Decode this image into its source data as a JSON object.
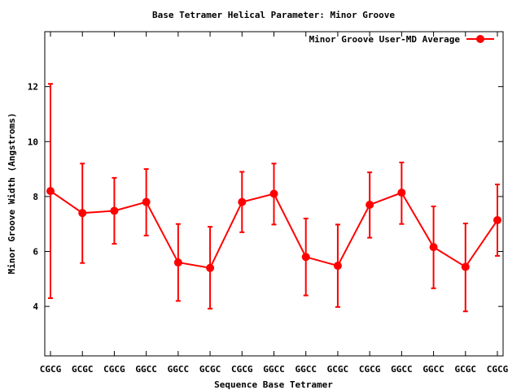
{
  "chart_data": {
    "type": "line",
    "title": "Base Tetramer Helical Parameter: Minor Groove",
    "xlabel": "Sequence Base Tetramer",
    "ylabel": "Minor Groove Width (Angstroms)",
    "categories": [
      "CGCG",
      "GCGC",
      "CGCG",
      "GGCC",
      "GGCC",
      "GCGC",
      "CGCG",
      "GGCC",
      "GGCC",
      "GCGC",
      "CGCG",
      "GGCC",
      "GGCC",
      "GCGC",
      "CGCG"
    ],
    "ylim": [
      2.2,
      14.0
    ],
    "yticks": [
      4,
      6,
      8,
      10,
      12
    ],
    "grid": false,
    "legend_position": "top-right",
    "series": [
      {
        "name": "Minor Groove User-MD Average",
        "color": "#ff0000",
        "values": [
          8.2,
          7.4,
          7.48,
          7.8,
          5.6,
          5.4,
          7.8,
          8.1,
          5.8,
          5.48,
          7.7,
          8.14,
          6.16,
          5.44,
          7.14
        ],
        "error_low": [
          4.3,
          5.58,
          6.28,
          6.58,
          4.2,
          3.92,
          6.7,
          6.98,
          4.4,
          3.98,
          6.5,
          7.0,
          4.66,
          3.82,
          5.84
        ],
        "error_high": [
          12.1,
          9.2,
          8.68,
          9.0,
          7.0,
          6.9,
          8.9,
          9.2,
          7.2,
          6.98,
          8.88,
          9.24,
          7.64,
          7.02,
          8.44
        ]
      }
    ]
  }
}
